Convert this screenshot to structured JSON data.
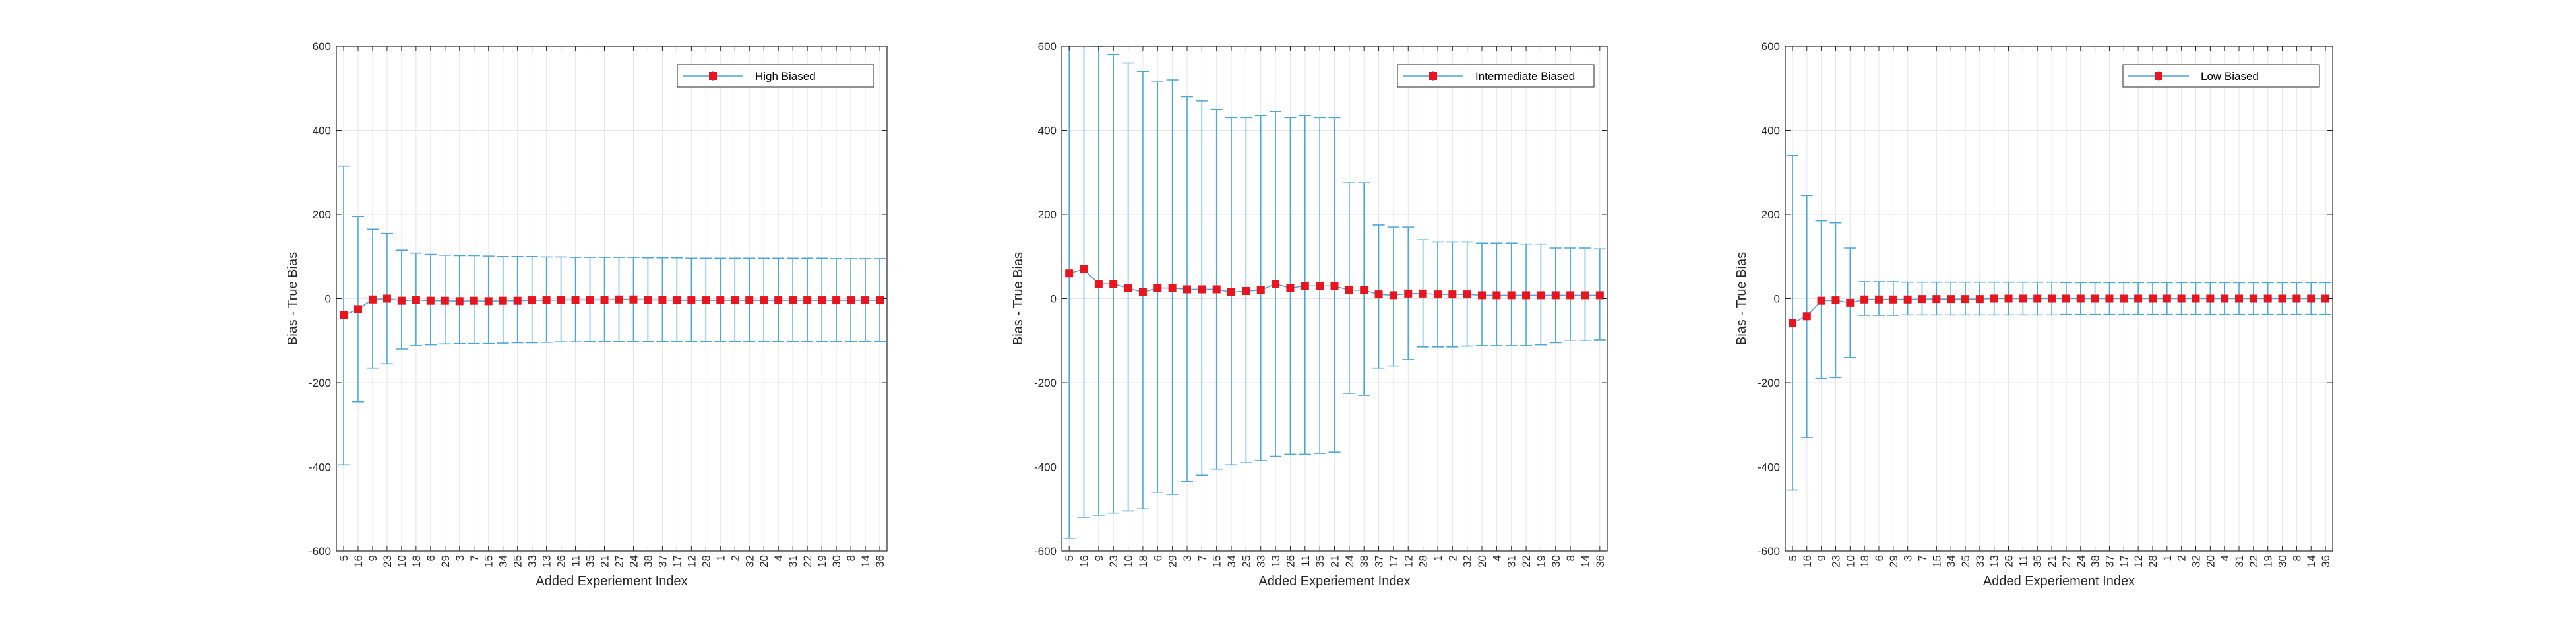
{
  "figure": {
    "colors": {
      "error_bar": "#4DA6D9",
      "marker": "#E8141E",
      "axis": "#262626",
      "grid": "#E6E6E6",
      "background": "#ffffff"
    },
    "legend_placement": "top-right",
    "grid": true
  },
  "chart_data": [
    {
      "type": "errorbar",
      "series_name": "High Biased",
      "xlabel": "Added Experiement Index",
      "ylabel": "Bias - True Bias",
      "ylim": [
        -600,
        600
      ],
      "yticks": [
        "600",
        "400",
        "200",
        "0",
        "-200",
        "-400",
        "-600"
      ],
      "categories": [
        "5",
        "16",
        "9",
        "23",
        "10",
        "18",
        "6",
        "29",
        "3",
        "7",
        "15",
        "34",
        "25",
        "33",
        "13",
        "26",
        "11",
        "35",
        "21",
        "27",
        "24",
        "38",
        "37",
        "17",
        "12",
        "28",
        "1",
        "2",
        "32",
        "20",
        "4",
        "31",
        "22",
        "19",
        "30",
        "8",
        "14",
        "36"
      ],
      "y": [
        -40,
        -25,
        -2,
        0,
        -5,
        -3,
        -5,
        -5,
        -6,
        -5,
        -6,
        -5,
        -5,
        -4,
        -4,
        -3,
        -3,
        -3,
        -3,
        -2,
        -2,
        -3,
        -3,
        -4,
        -4,
        -4,
        -4,
        -4,
        -4,
        -4,
        -4,
        -4,
        -4,
        -4,
        -4,
        -4,
        -4,
        -4
      ],
      "upper": [
        315,
        195,
        165,
        155,
        115,
        108,
        105,
        103,
        102,
        102,
        101,
        100,
        100,
        100,
        99,
        99,
        98,
        98,
        98,
        98,
        98,
        97,
        97,
        97,
        96,
        96,
        96,
        96,
        96,
        96,
        96,
        96,
        96,
        96,
        95,
        95,
        95,
        95
      ],
      "lower": [
        -395,
        -245,
        -165,
        -155,
        -120,
        -112,
        -110,
        -108,
        -107,
        -107,
        -107,
        -106,
        -105,
        -105,
        -104,
        -103,
        -103,
        -102,
        -102,
        -102,
        -102,
        -102,
        -102,
        -102,
        -102,
        -102,
        -102,
        -102,
        -102,
        -102,
        -102,
        -102,
        -102,
        -102,
        -102,
        -102,
        -102,
        -102
      ]
    },
    {
      "type": "errorbar",
      "series_name": "Intermediate Biased",
      "xlabel": "Added Experiement Index",
      "ylabel": "Bias - True Bias",
      "ylim": [
        -600,
        600
      ],
      "yticks": [
        "600",
        "400",
        "200",
        "0",
        "-200",
        "-400",
        "-600"
      ],
      "categories": [
        "5",
        "16",
        "9",
        "23",
        "10",
        "18",
        "6",
        "29",
        "3",
        "7",
        "15",
        "34",
        "25",
        "33",
        "13",
        "26",
        "11",
        "35",
        "21",
        "24",
        "38",
        "37",
        "17",
        "12",
        "28",
        "1",
        "2",
        "32",
        "20",
        "4",
        "31",
        "22",
        "19",
        "30",
        "8",
        "14",
        "36"
      ],
      "y": [
        60,
        70,
        35,
        35,
        25,
        15,
        25,
        25,
        22,
        22,
        22,
        15,
        18,
        20,
        35,
        25,
        30,
        30,
        30,
        20,
        20,
        10,
        8,
        12,
        12,
        10,
        10,
        10,
        8,
        8,
        8,
        8,
        8,
        8,
        8,
        8,
        8
      ],
      "upper": [
        700,
        700,
        600,
        580,
        560,
        540,
        515,
        520,
        480,
        470,
        450,
        430,
        430,
        435,
        445,
        430,
        435,
        430,
        430,
        275,
        275,
        175,
        170,
        170,
        140,
        135,
        135,
        135,
        132,
        132,
        132,
        130,
        130,
        120,
        120,
        120,
        118
      ],
      "lower": [
        -570,
        -520,
        -515,
        -510,
        -505,
        -500,
        -460,
        -465,
        -435,
        -420,
        -405,
        -395,
        -390,
        -385,
        -375,
        -370,
        -370,
        -368,
        -365,
        -225,
        -230,
        -165,
        -160,
        -145,
        -115,
        -115,
        -115,
        -113,
        -112,
        -112,
        -112,
        -112,
        -110,
        -105,
        -100,
        -100,
        -98
      ]
    },
    {
      "type": "errorbar",
      "series_name": "Low Biased",
      "xlabel": "Added Experiement Index",
      "ylabel": "Bias - True Bias",
      "ylim": [
        -600,
        600
      ],
      "yticks": [
        "600",
        "400",
        "200",
        "0",
        "-200",
        "-400",
        "-600"
      ],
      "categories": [
        "5",
        "16",
        "9",
        "23",
        "10",
        "18",
        "6",
        "29",
        "3",
        "7",
        "15",
        "34",
        "25",
        "33",
        "13",
        "26",
        "11",
        "35",
        "21",
        "27",
        "24",
        "38",
        "37",
        "17",
        "12",
        "28",
        "1",
        "2",
        "32",
        "20",
        "4",
        "31",
        "22",
        "19",
        "30",
        "8",
        "14",
        "36"
      ],
      "y": [
        -58,
        -42,
        -5,
        -4,
        -10,
        -2,
        -2,
        -2,
        -2,
        -1,
        -1,
        -1,
        -1,
        -1,
        0,
        0,
        0,
        0,
        0,
        0,
        0,
        0,
        0,
        0,
        0,
        0,
        0,
        0,
        0,
        0,
        0,
        0,
        0,
        0,
        0,
        0,
        0,
        0
      ],
      "upper": [
        340,
        245,
        185,
        180,
        120,
        40,
        40,
        40,
        39,
        39,
        39,
        39,
        39,
        39,
        39,
        39,
        39,
        39,
        39,
        38,
        38,
        38,
        38,
        38,
        38,
        38,
        38,
        38,
        38,
        38,
        38,
        38,
        38,
        38,
        38,
        38,
        38,
        38
      ],
      "lower": [
        -455,
        -330,
        -190,
        -188,
        -140,
        -40,
        -40,
        -40,
        -39,
        -39,
        -39,
        -39,
        -39,
        -39,
        -39,
        -39,
        -39,
        -39,
        -39,
        -38,
        -38,
        -38,
        -38,
        -38,
        -38,
        -38,
        -38,
        -38,
        -38,
        -38,
        -38,
        -38,
        -38,
        -38,
        -38,
        -38,
        -38,
        -38
      ]
    }
  ]
}
